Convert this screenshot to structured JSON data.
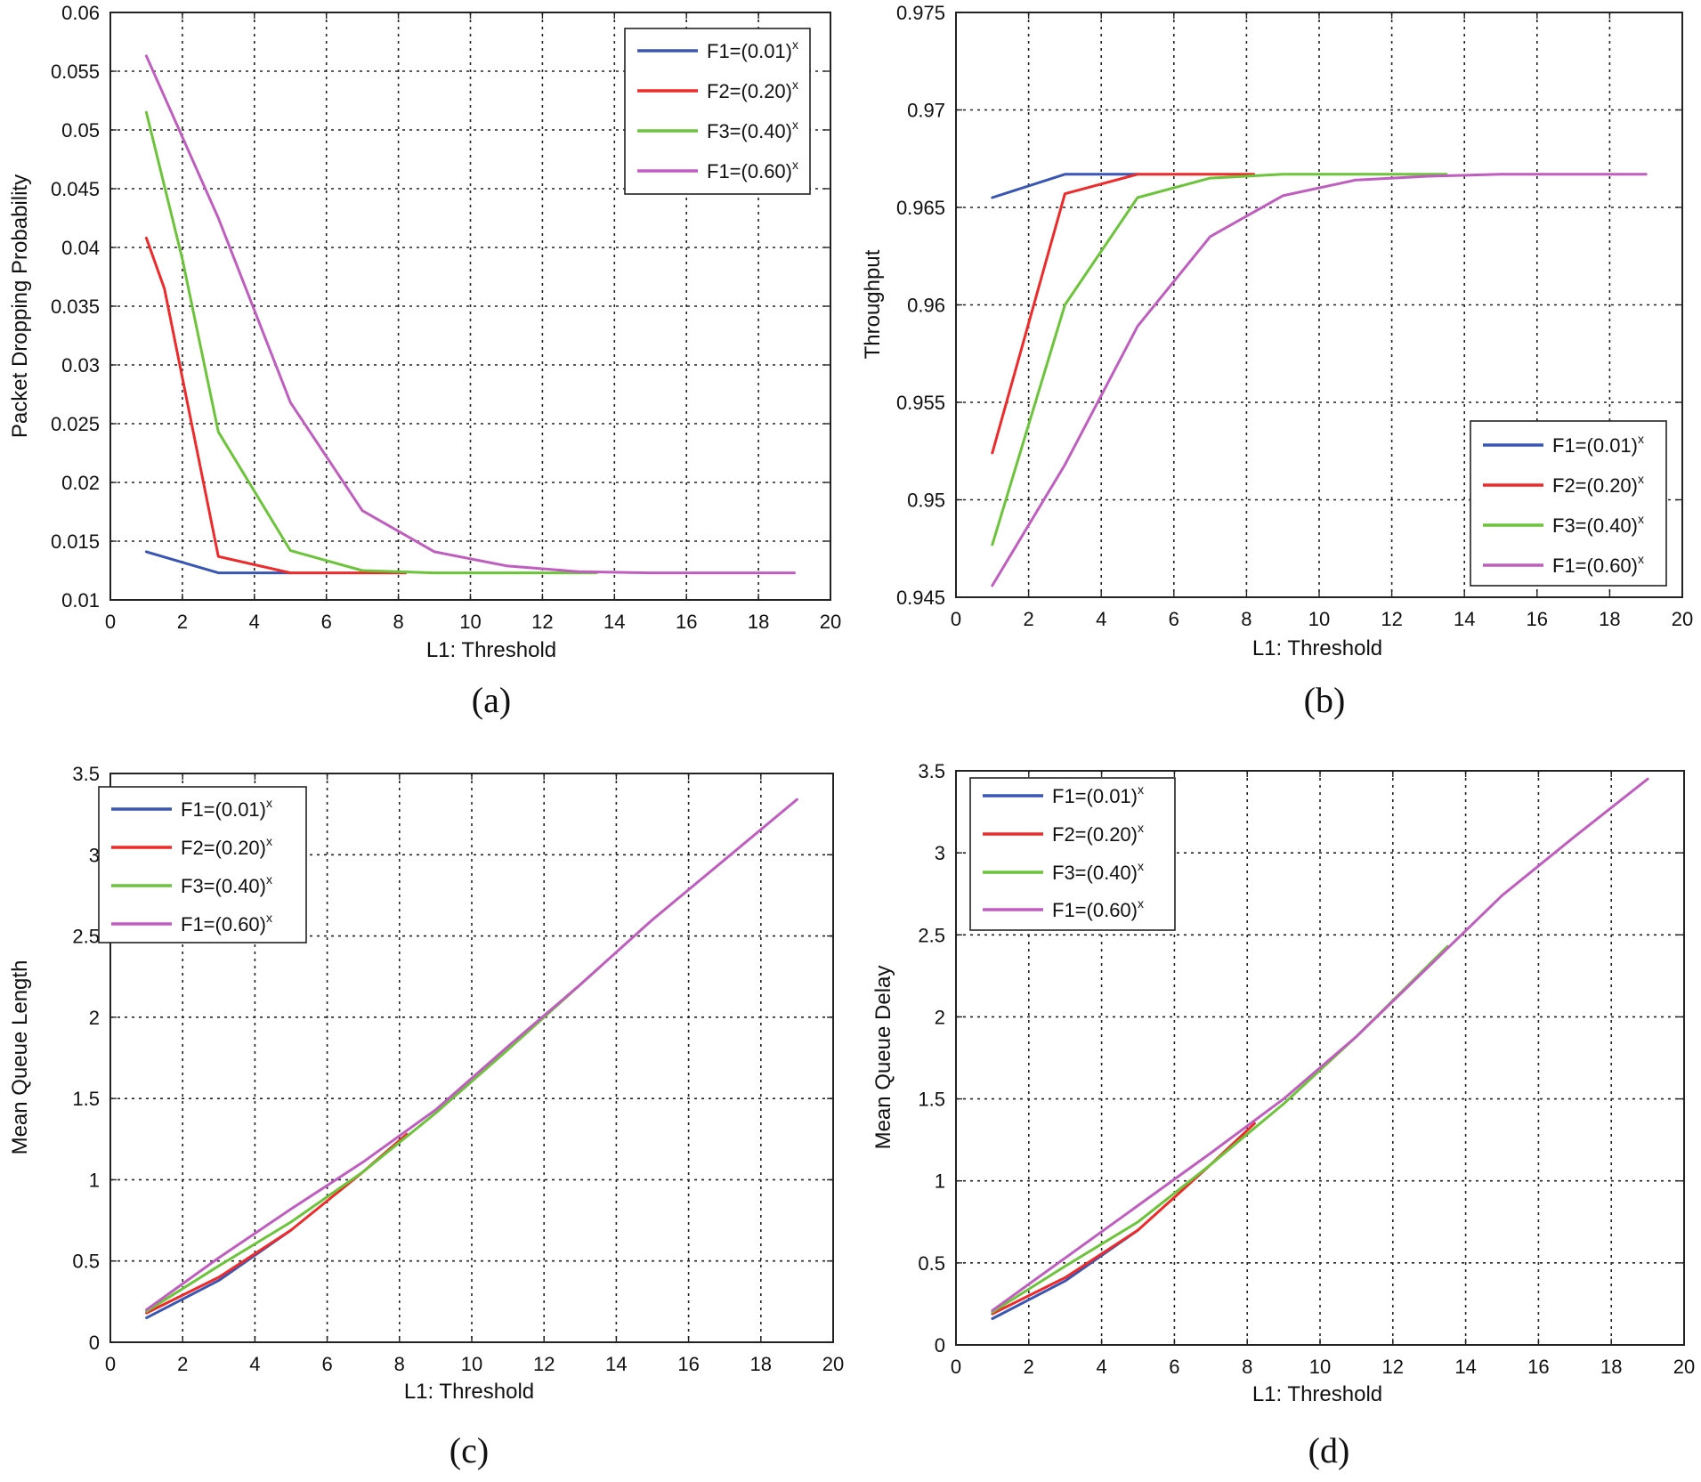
{
  "colors": {
    "blue": "#3a56b5",
    "red": "#ee2a2a",
    "green": "#6cc43a",
    "magenta": "#c05ec0"
  },
  "chart_data": [
    {
      "panel_id": "a",
      "type": "line",
      "caption": "(a)",
      "xlabel": "L1: Threshold",
      "ylabel": "Packet Dropping Probability",
      "xlim": [
        0,
        20
      ],
      "ylim": [
        0.01,
        0.06
      ],
      "xticks": [
        0,
        2,
        4,
        6,
        8,
        10,
        12,
        14,
        16,
        18,
        20
      ],
      "yticks": [
        0.01,
        0.015,
        0.02,
        0.025,
        0.03,
        0.035,
        0.04,
        0.045,
        0.05,
        0.055,
        0.06
      ],
      "ytick_labels": [
        "0.01",
        "0.015",
        "0.02",
        "0.025",
        "0.03",
        "0.035",
        "0.04",
        "0.045",
        "0.05",
        "0.055",
        "0.06"
      ],
      "grid": true,
      "legend_position": "top-right",
      "series": [
        {
          "name": "F1=(0.01)",
          "superscript": "x",
          "color_key": "blue",
          "x": [
            1,
            3,
            5
          ],
          "y": [
            0.0141,
            0.0123,
            0.0123
          ]
        },
        {
          "name": "F2=(0.20)",
          "superscript": "x",
          "color_key": "red",
          "x": [
            1,
            1.5,
            3,
            5,
            7,
            8.2
          ],
          "y": [
            0.0408,
            0.0365,
            0.0137,
            0.0123,
            0.0123,
            0.0123
          ]
        },
        {
          "name": "F3=(0.40)",
          "superscript": "x",
          "color_key": "green",
          "x": [
            1,
            2,
            3,
            5,
            7,
            9,
            11,
            13.5
          ],
          "y": [
            0.0515,
            0.039,
            0.0243,
            0.0142,
            0.0125,
            0.0123,
            0.0123,
            0.0123
          ]
        },
        {
          "name": "F1=(0.60)",
          "superscript": "x",
          "color_key": "magenta",
          "x": [
            1,
            3,
            5,
            7,
            9,
            11,
            13,
            15,
            17,
            19
          ],
          "y": [
            0.0563,
            0.0425,
            0.0268,
            0.0176,
            0.0141,
            0.0129,
            0.0124,
            0.0123,
            0.0123,
            0.0123
          ]
        }
      ]
    },
    {
      "panel_id": "b",
      "type": "line",
      "caption": "(b)",
      "xlabel": "L1: Threshold",
      "ylabel": "Throughput",
      "xlim": [
        0,
        20
      ],
      "ylim": [
        0.945,
        0.975
      ],
      "xticks": [
        0,
        2,
        4,
        6,
        8,
        10,
        12,
        14,
        16,
        18,
        20
      ],
      "yticks": [
        0.945,
        0.95,
        0.955,
        0.96,
        0.965,
        0.97,
        0.975
      ],
      "ytick_labels": [
        "0.945",
        "0.95",
        "0.955",
        "0.96",
        "0.965",
        "0.97",
        "0.975"
      ],
      "grid": true,
      "legend_position": "bottom-right",
      "series": [
        {
          "name": "F1=(0.01)",
          "superscript": "x",
          "color_key": "blue",
          "x": [
            1,
            3,
            5
          ],
          "y": [
            0.9655,
            0.9667,
            0.9667
          ]
        },
        {
          "name": "F2=(0.20)",
          "superscript": "x",
          "color_key": "red",
          "x": [
            1,
            3,
            5,
            8.2
          ],
          "y": [
            0.9524,
            0.9657,
            0.9667,
            0.9667
          ]
        },
        {
          "name": "F3=(0.40)",
          "superscript": "x",
          "color_key": "green",
          "x": [
            1,
            3,
            5,
            7,
            9,
            11,
            13.5
          ],
          "y": [
            0.9477,
            0.96,
            0.9655,
            0.9665,
            0.9667,
            0.9667,
            0.9667
          ]
        },
        {
          "name": "F1=(0.60)",
          "superscript": "x",
          "color_key": "magenta",
          "x": [
            1,
            3,
            5,
            7,
            9,
            11,
            13,
            15,
            17,
            19
          ],
          "y": [
            0.9456,
            0.9518,
            0.9589,
            0.9635,
            0.9656,
            0.9664,
            0.9666,
            0.9667,
            0.9667,
            0.9667
          ]
        }
      ]
    },
    {
      "panel_id": "c",
      "type": "line",
      "caption": "(c)",
      "xlabel": "L1: Threshold",
      "ylabel": "Mean Queue Length",
      "xlim": [
        0,
        20
      ],
      "ylim": [
        0,
        3.5
      ],
      "xticks": [
        0,
        2,
        4,
        6,
        8,
        10,
        12,
        14,
        16,
        18,
        20
      ],
      "yticks": [
        0,
        0.5,
        1,
        1.5,
        2,
        2.5,
        3,
        3.5
      ],
      "ytick_labels": [
        "0",
        "0.5",
        "1",
        "1.5",
        "2",
        "2.5",
        "3",
        "3.5"
      ],
      "grid": true,
      "legend_position": "top-left",
      "series": [
        {
          "name": "F1=(0.01)",
          "superscript": "x",
          "color_key": "blue",
          "x": [
            1,
            3,
            5
          ],
          "y": [
            0.15,
            0.38,
            0.69
          ]
        },
        {
          "name": "F2=(0.20)",
          "superscript": "x",
          "color_key": "red",
          "x": [
            1,
            3,
            5,
            7,
            8.2
          ],
          "y": [
            0.18,
            0.4,
            0.69,
            1.05,
            1.28
          ]
        },
        {
          "name": "F3=(0.40)",
          "superscript": "x",
          "color_key": "green",
          "x": [
            1,
            3,
            5,
            7,
            9,
            11,
            13.5
          ],
          "y": [
            0.19,
            0.47,
            0.74,
            1.05,
            1.41,
            1.8,
            2.3
          ]
        },
        {
          "name": "F1=(0.60)",
          "superscript": "x",
          "color_key": "magenta",
          "x": [
            1,
            3,
            5,
            7,
            9,
            11,
            13,
            15,
            17,
            19
          ],
          "y": [
            0.2,
            0.52,
            0.82,
            1.11,
            1.43,
            1.82,
            2.2,
            2.6,
            2.97,
            3.34
          ]
        }
      ]
    },
    {
      "panel_id": "d",
      "type": "line",
      "caption": "(d)",
      "xlabel": "L1: Threshold",
      "ylabel": "Mean Queue Delay",
      "xlim": [
        0,
        20
      ],
      "ylim": [
        0,
        3.5
      ],
      "xticks": [
        0,
        2,
        4,
        6,
        8,
        10,
        12,
        14,
        16,
        18,
        20
      ],
      "yticks": [
        0,
        0.5,
        1,
        1.5,
        2,
        2.5,
        3,
        3.5
      ],
      "ytick_labels": [
        "0",
        "0.5",
        "1",
        "1.5",
        "2",
        "2.5",
        "3",
        "3.5"
      ],
      "grid": true,
      "legend_position": "top-left",
      "series": [
        {
          "name": "F1=(0.01)",
          "superscript": "x",
          "color_key": "blue",
          "x": [
            1,
            3,
            5
          ],
          "y": [
            0.16,
            0.39,
            0.7
          ]
        },
        {
          "name": "F2=(0.20)",
          "superscript": "x",
          "color_key": "red",
          "x": [
            1,
            3,
            5,
            7,
            8.2
          ],
          "y": [
            0.19,
            0.41,
            0.7,
            1.1,
            1.35
          ]
        },
        {
          "name": "F3=(0.40)",
          "superscript": "x",
          "color_key": "green",
          "x": [
            1,
            3,
            5,
            7,
            9,
            11,
            13.5
          ],
          "y": [
            0.2,
            0.48,
            0.75,
            1.1,
            1.47,
            1.88,
            2.43
          ]
        },
        {
          "name": "F1=(0.60)",
          "superscript": "x",
          "color_key": "magenta",
          "x": [
            1,
            3,
            5,
            7,
            9,
            11,
            13,
            15,
            17,
            19
          ],
          "y": [
            0.21,
            0.53,
            0.85,
            1.17,
            1.5,
            1.88,
            2.31,
            2.74,
            3.1,
            3.45
          ]
        }
      ]
    }
  ]
}
